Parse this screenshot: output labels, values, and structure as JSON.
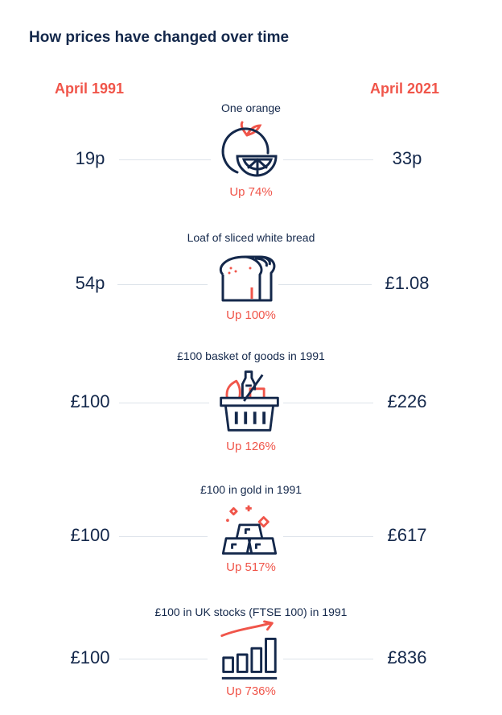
{
  "title": "How prices have changed over time",
  "headers": {
    "left": "April 1991",
    "right": "April 2021"
  },
  "colors": {
    "navy": "#14284b",
    "accent": "#f0554a"
  },
  "rows": [
    {
      "label": "One orange",
      "before": "19p",
      "after": "33p",
      "change": "Up 74%",
      "icon": "orange-icon"
    },
    {
      "label": "Loaf of sliced white bread",
      "before": "54p",
      "after": "£1.08",
      "change": "Up 100%",
      "icon": "bread-icon"
    },
    {
      "label": "£100 basket of goods in 1991",
      "before": "£100",
      "after": "£226",
      "change": "Up 126%",
      "icon": "shopping-basket-icon"
    },
    {
      "label": "£100 in gold in 1991",
      "before": "£100",
      "after": "£617",
      "change": "Up 517%",
      "icon": "gold-bars-icon"
    },
    {
      "label": "£100 in UK stocks (FTSE 100) in 1991",
      "before": "£100",
      "after": "£836",
      "change": "Up 736%",
      "icon": "rising-bar-chart-icon"
    }
  ]
}
